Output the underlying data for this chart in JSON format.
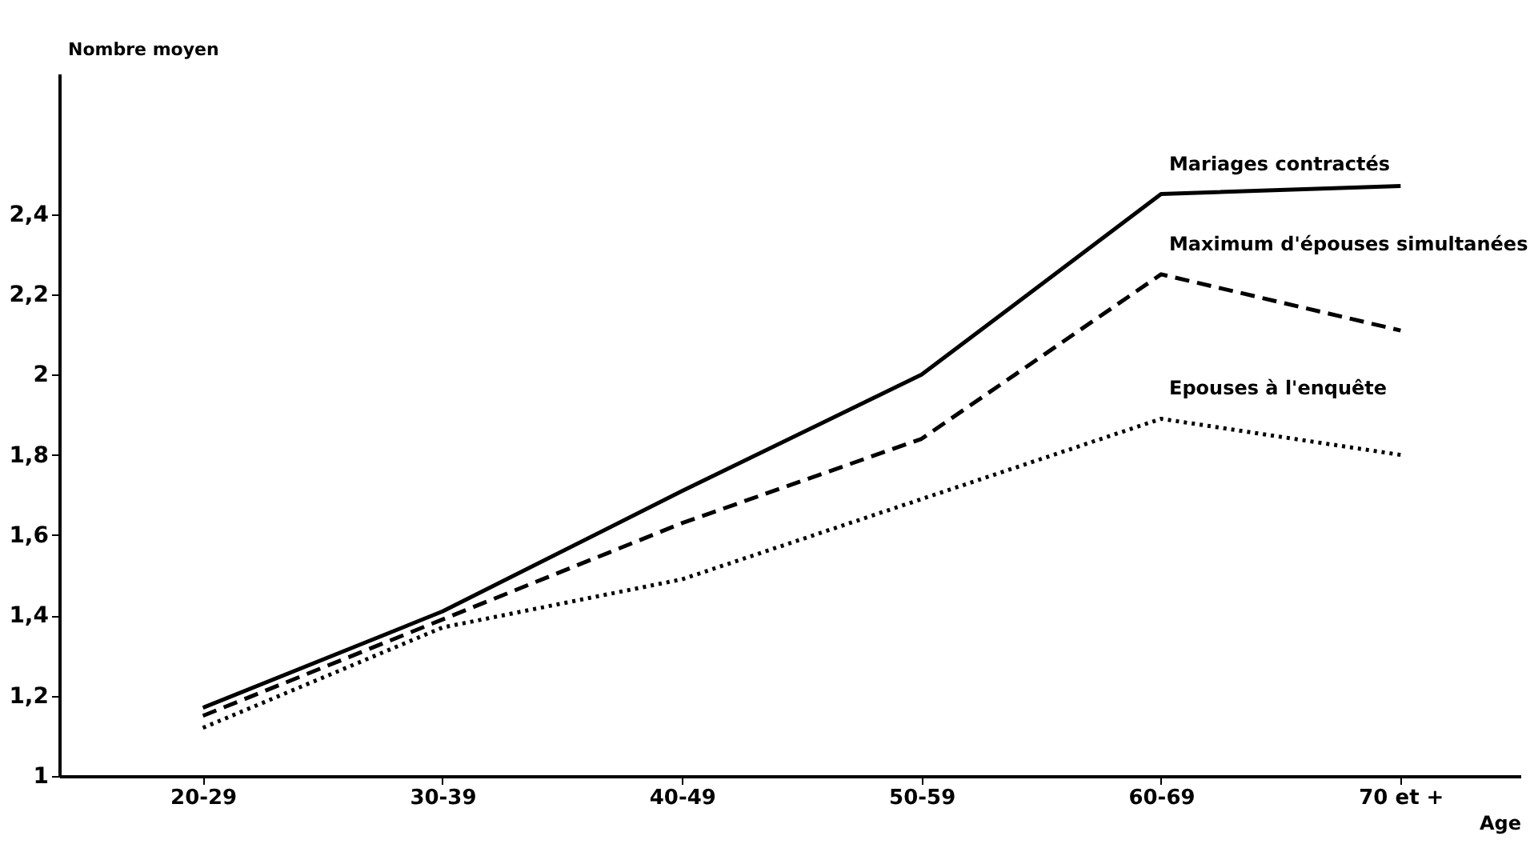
{
  "chart_data": {
    "type": "line",
    "xlabel": "Age",
    "ylabel": "Nombre moyen",
    "categories": [
      "20-29",
      "30-39",
      "40-49",
      "50-59",
      "60-69",
      "70 et +"
    ],
    "series": [
      {
        "name": "Mariages contractés",
        "color": "#000000",
        "line_style": "solid",
        "values": [
          1.17,
          1.41,
          1.71,
          2.0,
          2.45,
          2.47
        ]
      },
      {
        "name": "Maximum d'épouses simultanées",
        "color": "#000000",
        "line_style": "dashed",
        "values": [
          1.15,
          1.39,
          1.63,
          1.84,
          2.25,
          2.11
        ]
      },
      {
        "name": "Epouses à l'enquête",
        "color": "#000000",
        "line_style": "dotted",
        "values": [
          1.12,
          1.37,
          1.49,
          1.69,
          1.89,
          1.8
        ]
      }
    ],
    "ylim": [
      1,
      2.75
    ],
    "yticks": [
      1,
      {
        "value": 1.2,
        "label": "1,2"
      },
      {
        "value": 1.4,
        "label": "1,4"
      },
      {
        "value": 1.6,
        "label": "1,6"
      },
      {
        "value": 1.8,
        "label": "1,8"
      },
      2,
      {
        "value": 2.2,
        "label": "2,2"
      },
      {
        "value": 2.4,
        "label": "2,4"
      }
    ],
    "grid": false,
    "marker": "none"
  }
}
